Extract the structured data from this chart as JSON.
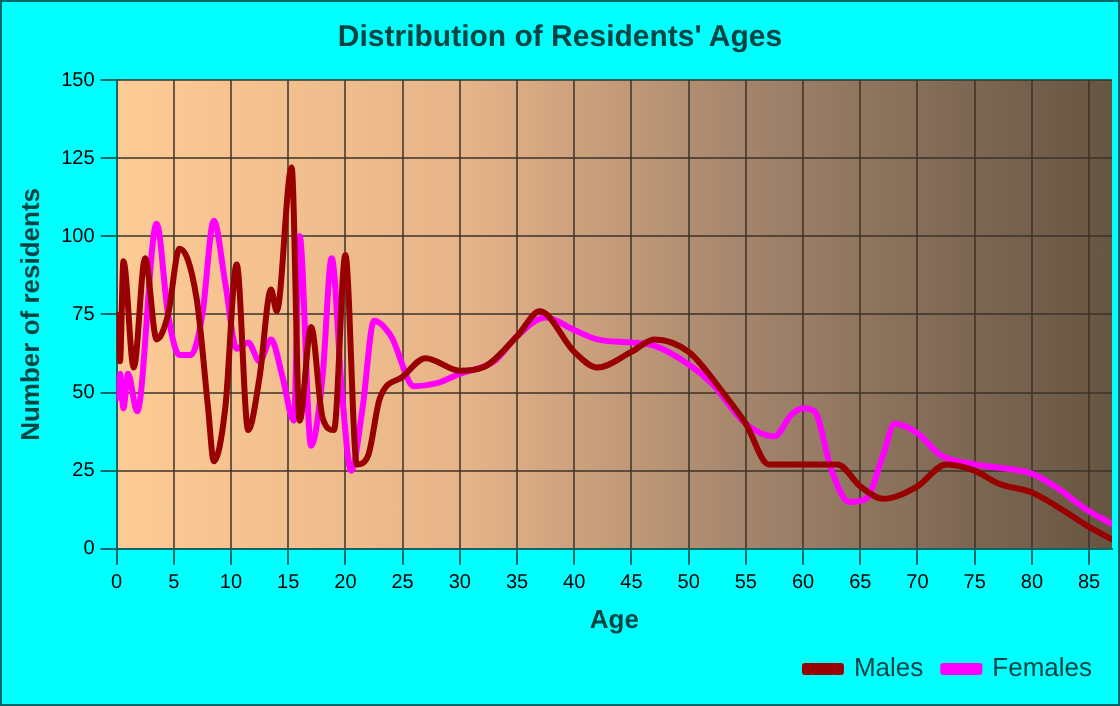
{
  "chart_data": {
    "type": "line",
    "title": "Distribution of Residents' Ages",
    "xlabel": "Age",
    "ylabel": "Number of residents",
    "xlim": [
      0,
      87
    ],
    "xticks": [
      0,
      5,
      10,
      15,
      20,
      25,
      30,
      35,
      40,
      45,
      50,
      55,
      60,
      65,
      70,
      75,
      80,
      85
    ],
    "ylim": [
      0,
      150
    ],
    "yticks": [
      0,
      25,
      50,
      75,
      100,
      125,
      150
    ],
    "grid": true,
    "legend": "bottom right",
    "marker": "none",
    "line_style": "solid",
    "series": [
      {
        "name": "Males",
        "color": "#990000",
        "x": [
          0,
          0.3,
          0.6,
          1.5,
          2.5,
          3.5,
          4.5,
          5.5,
          7,
          8,
          8.5,
          9.5,
          10.5,
          11.5,
          12.5,
          13.5,
          14,
          15.3,
          16,
          17,
          18,
          19,
          20,
          21,
          22,
          23,
          25,
          27,
          30,
          32,
          35,
          37,
          40,
          42,
          45,
          47,
          50,
          53,
          55,
          57,
          60,
          63,
          65,
          67,
          70,
          72.5,
          75,
          77,
          80,
          82,
          85,
          87
        ],
        "values": [
          75,
          60,
          92,
          58,
          93,
          67,
          75,
          96,
          80,
          45,
          28,
          45,
          91,
          38,
          55,
          83,
          76,
          122,
          41,
          71,
          42,
          38,
          94,
          27,
          30,
          48,
          55,
          61,
          57,
          58,
          68,
          76,
          63,
          58,
          63,
          67,
          63,
          50,
          40,
          27,
          27,
          27,
          20,
          16,
          20,
          27,
          25,
          21,
          18,
          14,
          7,
          3
        ]
      },
      {
        "name": "Females",
        "color": "#ff00ff",
        "x": [
          0,
          0.3,
          0.6,
          1,
          1.8,
          3.5,
          4.5,
          5.5,
          6.5,
          7.5,
          8.5,
          9.5,
          10.5,
          11.5,
          12.5,
          13.5,
          14.5,
          15.5,
          16,
          17,
          18,
          18.8,
          19.7,
          20.5,
          21.5,
          22.5,
          24,
          26,
          28,
          30,
          33,
          35,
          37.5,
          40,
          42,
          45,
          47,
          50,
          52,
          55,
          57.5,
          59,
          60,
          61,
          62.5,
          64,
          65.5,
          67,
          68,
          70,
          72,
          75,
          77,
          80,
          82,
          85,
          87
        ],
        "values": [
          48,
          56,
          45,
          56,
          44,
          104,
          75,
          62,
          62,
          75,
          105,
          85,
          64,
          66,
          60,
          67,
          55,
          41,
          100,
          33,
          55,
          93,
          50,
          25,
          45,
          73,
          68,
          52,
          53,
          56,
          60,
          68,
          74,
          70,
          67,
          66,
          65,
          59,
          53,
          40,
          36,
          43,
          45,
          44,
          25,
          15,
          16,
          30,
          40,
          37,
          30,
          27,
          26,
          24,
          20,
          12,
          8
        ]
      }
    ]
  }
}
